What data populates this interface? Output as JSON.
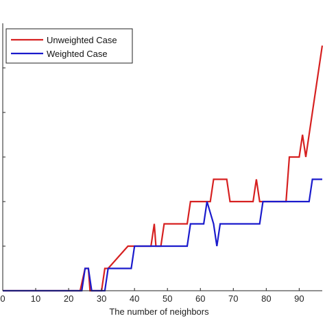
{
  "chart_data": {
    "type": "line",
    "xlabel": "The number of neighbors",
    "ylabel": "",
    "title": "",
    "xlim": [
      0,
      97
    ],
    "ylim": [
      0,
      100
    ],
    "x_ticks": [
      0,
      10,
      20,
      30,
      40,
      50,
      60,
      70,
      80,
      90
    ],
    "x_tick_labels": [
      "0",
      "10",
      "20",
      "30",
      "40",
      "50",
      "60",
      "70",
      "80",
      "90"
    ],
    "y_ticks": [
      0,
      16.67,
      33.33,
      50,
      66.67,
      83.33
    ],
    "grid": false,
    "legend_position": "top-left",
    "series": [
      {
        "name": "Unweighted Case",
        "color": "#d62020",
        "x": [
          0,
          23.5,
          25,
          26,
          26.5,
          30,
          31,
          32,
          38,
          39,
          45,
          46,
          46.5,
          48,
          49,
          56,
          57,
          63,
          64,
          65,
          68,
          69,
          70,
          76,
          77,
          78,
          79,
          86,
          87,
          89,
          90,
          91,
          92,
          93,
          94,
          95,
          96,
          97
        ],
        "y": [
          0,
          0,
          8.33,
          8.33,
          0,
          0,
          8.33,
          8.33,
          16.67,
          16.67,
          16.67,
          25,
          16.67,
          16.67,
          25,
          25,
          33.33,
          33.33,
          41.67,
          41.67,
          41.67,
          33.33,
          33.33,
          33.33,
          41.67,
          33.33,
          33.33,
          33.33,
          50,
          50,
          50,
          58.33,
          50,
          58.33,
          66.67,
          75,
          83.33,
          91.67
        ]
      },
      {
        "name": "Weighted Case",
        "color": "#1a1acc",
        "x": [
          0,
          24,
          25,
          26,
          27,
          31,
          32,
          39,
          40,
          56,
          57,
          61,
          62,
          64,
          65,
          66,
          78,
          79,
          86,
          87,
          93,
          94,
          97
        ],
        "y": [
          0,
          0,
          8.33,
          8.33,
          0,
          0,
          8.33,
          8.33,
          16.67,
          16.67,
          25,
          25,
          33.33,
          25,
          16.67,
          25,
          25,
          33.33,
          33.33,
          33.33,
          33.33,
          41.67,
          41.67
        ]
      }
    ]
  }
}
